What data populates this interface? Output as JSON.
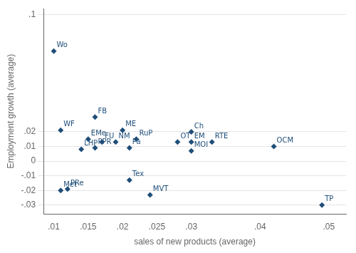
{
  "chart_data": {
    "type": "scatter",
    "x": [
      0.01,
      0.011,
      0.016,
      0.02,
      0.015,
      0.017,
      0.019,
      0.022,
      0.021,
      0.016,
      0.014,
      0.03,
      0.028,
      0.03,
      0.033,
      0.03,
      0.042,
      0.021,
      0.012,
      0.011,
      0.024,
      0.049
    ],
    "values": [
      0.075,
      0.021,
      0.03,
      0.021,
      0.015,
      0.013,
      0.013,
      0.015,
      0.009,
      0.009,
      0.008,
      0.02,
      0.013,
      0.013,
      0.013,
      0.007,
      0.01,
      -0.013,
      -0.019,
      -0.02,
      -0.023,
      -0.03
    ],
    "labels": [
      "Wo",
      "WF",
      "FB",
      "ME",
      "EMe",
      "FU",
      "NM",
      "RuP",
      "Pa",
      "PPR",
      "LHP",
      "Ch",
      "OT",
      "EM",
      "RTE",
      "MOI",
      "OCM",
      "Tex",
      "PRe",
      "Met",
      "MVT",
      "TP"
    ],
    "xlabel": "sales of new products (average)",
    "ylabel": "Employment growth (average)",
    "xlim": [
      0.0085,
      0.0525
    ],
    "ylim": [
      -0.036,
      0.104
    ],
    "xticks": [
      {
        "value": 0.01,
        "label": ".01"
      },
      {
        "value": 0.015,
        "label": ".015"
      },
      {
        "value": 0.02,
        "label": ".02"
      },
      {
        "value": 0.025,
        "label": ".025"
      },
      {
        "value": 0.03,
        "label": ".03"
      },
      {
        "value": 0.04,
        "label": ".04"
      },
      {
        "value": 0.05,
        "label": ".05"
      }
    ],
    "yticks": [
      {
        "value": -0.03,
        "label": "-.03"
      },
      {
        "value": -0.02,
        "label": "-.02"
      },
      {
        "value": -0.01,
        "label": "-.01"
      },
      0,
      {
        "value": 0.01,
        "label": ".01"
      },
      {
        "value": 0.02,
        "label": ".02"
      },
      {
        "value": 0.1,
        "label": ".1"
      }
    ],
    "color": "#1f4e79",
    "marker": "diamond",
    "grid": "y"
  }
}
